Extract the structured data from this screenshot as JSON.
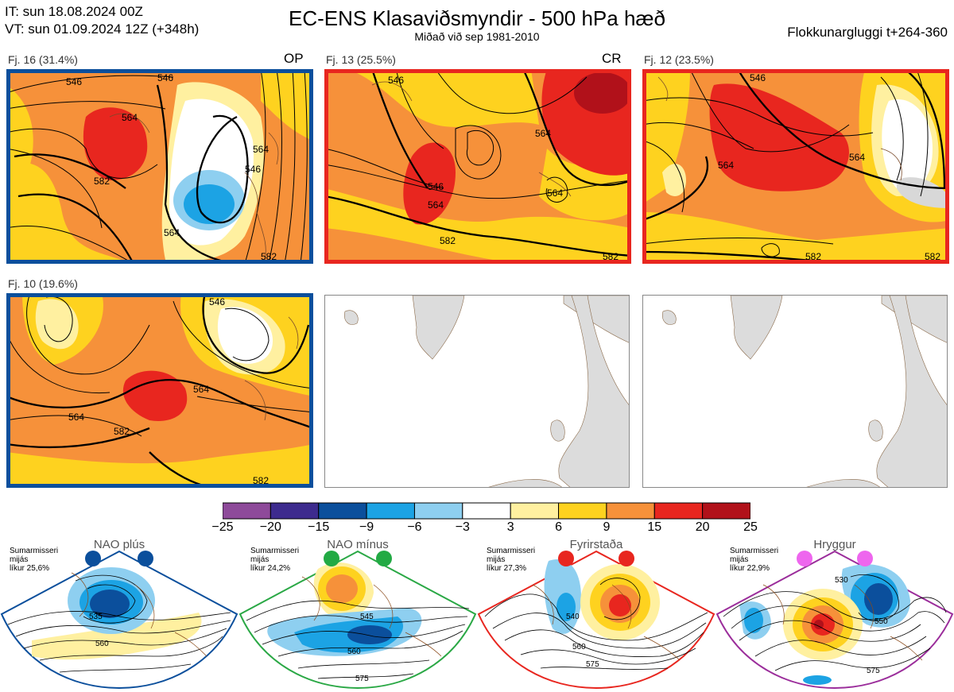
{
  "header": {
    "it_line": "IT: sun 18.08.2024 00Z",
    "vt_line": "VT: sun 01.09.2024 12Z  (+348h)",
    "title": "EC-ENS Klasaviðsmyndir - 500 hPa hæð",
    "subtitle": "Miðað við sep 1981-2010",
    "window": "Flokkunargluggi t+264-360"
  },
  "panels": [
    {
      "label": "Fj. 16 (31.4%)",
      "tag": "OP",
      "frame_color": "#0b4f9c",
      "contours": [
        "546",
        "564",
        "582",
        "546",
        "564",
        "564",
        "546",
        "582"
      ]
    },
    {
      "label": "Fj. 13 (25.5%)",
      "tag": "CR",
      "frame_color": "#e8261f",
      "contours": [
        "546",
        "564",
        "546",
        "564",
        "564",
        "582",
        "582"
      ]
    },
    {
      "label": "Fj. 12 (23.5%)",
      "tag": "",
      "frame_color": "#e8261f",
      "contours": [
        "546",
        "564",
        "564",
        "582",
        "582"
      ]
    },
    {
      "label": "Fj. 10 (19.6%)",
      "tag": "",
      "frame_color": "#0b4f9c",
      "contours": [
        "546",
        "564",
        "564",
        "582",
        "582"
      ]
    }
  ],
  "chart_data": {
    "type": "heatmap",
    "title": "EC-ENS Klasaviðsmyndir - 500 hPa hæð",
    "subtitle": "Miðað við sep 1981-2010",
    "colorbar": {
      "ticks": [
        "−25",
        "−20",
        "−15",
        "−9",
        "−6",
        "−3",
        "3",
        "6",
        "9",
        "15",
        "20",
        "25"
      ],
      "colors": [
        "#8e4a9a",
        "#3d2b8e",
        "#0b4f9c",
        "#1ca3e4",
        "#8ecff0",
        "#ffffff",
        "#fff0a0",
        "#fed21f",
        "#f6913a",
        "#e8261f",
        "#b1111a"
      ]
    },
    "clusters": [
      {
        "name": "Fj. 16",
        "percent": 31.4,
        "tag": "OP"
      },
      {
        "name": "Fj. 13",
        "percent": 25.5,
        "tag": "CR"
      },
      {
        "name": "Fj. 12",
        "percent": 23.5
      },
      {
        "name": "Fj. 10",
        "percent": 19.6
      }
    ],
    "regimes": [
      {
        "name": "NAO plús",
        "probability": 25.6,
        "color": "#0b4f9c"
      },
      {
        "name": "NAO mínus",
        "probability": 24.2,
        "color": "#22aa44"
      },
      {
        "name": "Fyrirstaða",
        "probability": 27.3,
        "color": "#e8261f"
      },
      {
        "name": "Hryggur",
        "probability": 22.9,
        "color": "#9b2d9b"
      }
    ]
  },
  "regimes": [
    {
      "name": "NAO plús",
      "note1": "Sumarmisseri",
      "note2": "mijás",
      "note3": "líkur 25,6%",
      "frame_color": "#0b4f9c",
      "dot_color": "#0b4f9c",
      "contours": [
        "535",
        "560"
      ]
    },
    {
      "name": "NAO mínus",
      "note1": "Sumarmisseri",
      "note2": "mijás",
      "note3": "líkur 24,2%",
      "frame_color": "#2aa845",
      "dot_color": "#22aa44",
      "contours": [
        "545",
        "560",
        "575"
      ]
    },
    {
      "name": "Fyrirstaða",
      "note1": "Sumarmisseri",
      "note2": "mijás",
      "note3": "líkur 27,3%",
      "frame_color": "#e8261f",
      "dot_color": "#e8261f",
      "contours": [
        "540",
        "560",
        "575"
      ]
    },
    {
      "name": "Hryggur",
      "note1": "Sumarmisseri",
      "note2": "mijás",
      "note3": "líkur 22,9%",
      "frame_color": "#9b2d9b",
      "dot_color": "#ee66ee",
      "contours": [
        "530",
        "550",
        "575"
      ]
    }
  ]
}
